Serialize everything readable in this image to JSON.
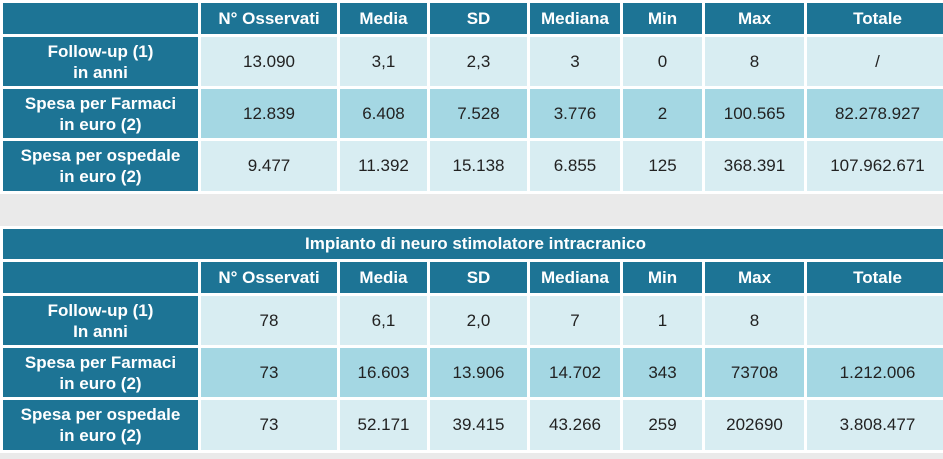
{
  "columns": [
    "",
    "N° Osservati",
    "Media",
    "SD",
    "Mediana",
    "Min",
    "Max",
    "Totale"
  ],
  "table1": {
    "rows": [
      {
        "label_line1": "Follow-up (1)",
        "label_line2": "in anni",
        "values": [
          "13.090",
          "3,1",
          "2,3",
          "3",
          "0",
          "8",
          "/"
        ]
      },
      {
        "label_line1": "Spesa per Farmaci",
        "label_line2": "in euro (2)",
        "values": [
          "12.839",
          "6.408",
          "7.528",
          "3.776",
          "2",
          "100.565",
          "82.278.927"
        ]
      },
      {
        "label_line1": "Spesa per ospedale",
        "label_line2": "in euro (2)",
        "values": [
          "9.477",
          "11.392",
          "15.138",
          "6.855",
          "125",
          "368.391",
          "107.962.671"
        ]
      }
    ]
  },
  "table2": {
    "title": "Impianto di neuro stimolatore intracranico",
    "rows": [
      {
        "label_line1": "Follow-up (1)",
        "label_line2": "In anni",
        "values": [
          "78",
          "6,1",
          "2,0",
          "7",
          "1",
          "8",
          ""
        ]
      },
      {
        "label_line1": "Spesa per Farmaci",
        "label_line2": "in euro (2)",
        "values": [
          "73",
          "16.603",
          "13.906",
          "14.702",
          "343",
          "73708",
          "1.212.006"
        ]
      },
      {
        "label_line1": "Spesa per ospedale",
        "label_line2": "in euro (2)",
        "values": [
          "73",
          "52.171",
          "39.415",
          "43.266",
          "259",
          "202690",
          "3.808.477"
        ]
      }
    ]
  },
  "colors": {
    "header_bg": "#1d7495",
    "cell_light": "#d8edf2",
    "cell_dark": "#a4d7e3",
    "gap_bg": "#eaeaea"
  }
}
